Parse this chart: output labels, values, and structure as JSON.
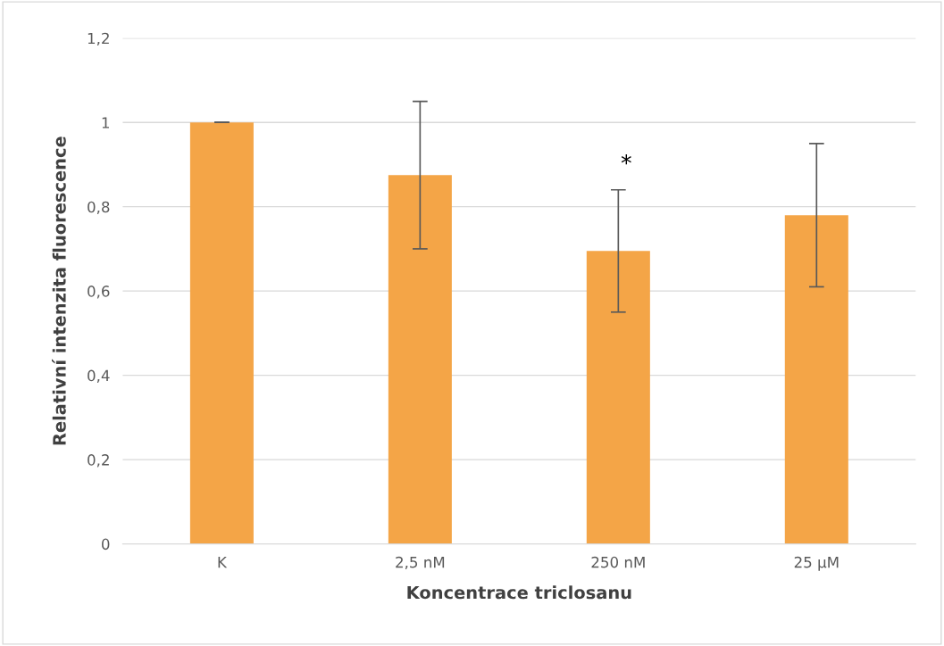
{
  "chart_data": {
    "type": "bar",
    "xlabel": "Koncentrace triclosanu",
    "ylabel": "Relativní intenzita fluorescence",
    "categories": [
      "K",
      "2,5 nM",
      "250 nM",
      "25 µM"
    ],
    "values": [
      1.0,
      0.875,
      0.695,
      0.78
    ],
    "errors": [
      0,
      0.175,
      0.145,
      0.17
    ],
    "color": "#f4a547",
    "ylim": [
      0,
      1.2
    ],
    "yticks": [
      0,
      {
        "value": 0.2,
        "label": "0,2"
      },
      {
        "value": 0.4,
        "label": "0,4"
      },
      {
        "value": 0.6,
        "label": "0,6"
      },
      {
        "value": 0.8,
        "label": "0,8"
      },
      1,
      {
        "value": 1.2,
        "label": "1,2"
      }
    ],
    "annotations": [
      "*"
    ],
    "grid": "y"
  }
}
